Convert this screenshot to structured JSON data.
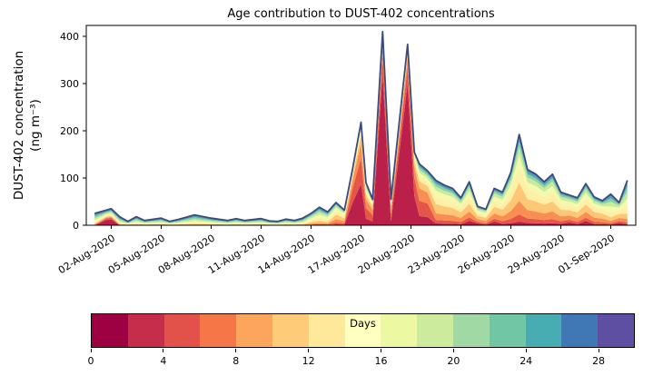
{
  "title": "Age contribution to DUST-402 concentrations",
  "ylabel": {
    "line1": "DUST-402 concentration",
    "line2": "(ng m⁻³)"
  },
  "colorbar": {
    "label": "Days",
    "ticks": [
      0,
      4,
      8,
      12,
      16,
      20,
      24,
      28
    ],
    "range": [
      0,
      30
    ],
    "segment_colors": [
      "#9e0142",
      "#c52d4b",
      "#e2524a",
      "#f57647",
      "#fca55d",
      "#fecb79",
      "#fee99a",
      "#ffffbf",
      "#edf8a3",
      "#cdeb9d",
      "#a1d9a4",
      "#70c6a5",
      "#48adb3",
      "#3f78b5",
      "#5e4fa2"
    ]
  },
  "chart_data": {
    "type": "stacked_area",
    "title": "Age contribution to DUST-402 concentrations",
    "ylabel": "DUST-402 concentration (ng m⁻³)",
    "xlabel": "",
    "ylim": [
      0,
      423
    ],
    "xlim": [
      -0.5,
      32.5
    ],
    "yticks": [
      0,
      100,
      200,
      300,
      400
    ],
    "xtick_pos": [
      1,
      4,
      7,
      10,
      13,
      16,
      19,
      22,
      25,
      28,
      31
    ],
    "xtick_labels": [
      "02-Aug-2020",
      "05-Aug-2020",
      "08-Aug-2020",
      "11-Aug-2020",
      "14-Aug-2020",
      "17-Aug-2020",
      "20-Aug-2020",
      "23-Aug-2020",
      "26-Aug-2020",
      "29-Aug-2020",
      "01-Sep-2020"
    ],
    "legend": "colorbar (Days, 0-30)",
    "grid": false,
    "line_color": "#3b4a7d",
    "age_bin_labels_days": [
      "0-3",
      "3-6",
      "6-9",
      "9-12",
      "12-15",
      "15-18",
      "18-21",
      "21-24",
      "24-27",
      "27-30"
    ],
    "bin_colors": [
      "#ba2049",
      "#e55649",
      "#f98e52",
      "#fec776",
      "#fff0a5",
      "#f3faac",
      "#c9e99e",
      "#89d0a5",
      "#4ca5b1",
      "#486caf"
    ],
    "x": [
      0,
      0.7,
      1,
      1.5,
      2,
      2.5,
      3,
      4,
      4.5,
      5,
      6,
      7,
      8,
      8.5,
      9,
      10,
      10.5,
      11,
      11.5,
      12,
      12.5,
      13,
      13.5,
      14,
      14.5,
      15,
      15.5,
      16,
      16.3,
      16.7,
      17.3,
      17.8,
      18.8,
      19.2,
      19.5,
      20,
      20.5,
      21,
      21.5,
      22,
      22.5,
      23,
      23.5,
      24,
      24.5,
      25,
      25.5,
      26,
      26.5,
      27,
      27.5,
      28,
      28.5,
      29,
      29.5,
      30,
      30.5,
      31,
      31.5,
      32
    ],
    "x_unit": "days since 01-Aug-2020",
    "total": [
      25,
      32,
      35,
      18,
      8,
      18,
      10,
      15,
      8,
      12,
      22,
      15,
      10,
      14,
      10,
      14,
      9,
      8,
      13,
      10,
      15,
      25,
      38,
      28,
      48,
      32,
      120,
      218,
      90,
      55,
      410,
      55,
      383,
      155,
      130,
      115,
      95,
      85,
      78,
      58,
      92,
      40,
      34,
      78,
      70,
      112,
      192,
      118,
      108,
      92,
      108,
      70,
      64,
      58,
      88,
      60,
      52,
      66,
      48,
      95
    ],
    "profile_names": [
      "aged",
      "early-burst",
      "early-burst",
      "aged",
      "aged",
      "aged",
      "aged",
      "aged",
      "aged",
      "aged",
      "aged",
      "aged",
      "aged",
      "aged",
      "aged",
      "aged",
      "aged",
      "aged",
      "aged",
      "aged",
      "aged",
      "old-mid",
      "old-mid",
      "old-mid",
      "mid",
      "mid",
      "fresh-mix",
      "fresh-mix",
      "mixed-young",
      "mixed-young",
      "fresh",
      "mixed-young",
      "fresh",
      "fresh-mix",
      "mixed-young",
      "mixed-young",
      "mid",
      "mid",
      "mid",
      "mid",
      "mid-red",
      "mid-red",
      "mid",
      "mid-red",
      "mid",
      "mid",
      "mid",
      "mid",
      "mid",
      "mid",
      "mid",
      "mid",
      "mid-red",
      "mid",
      "mid-red",
      "mid",
      "mid",
      "old-mid",
      "mid-red",
      "old-mid"
    ],
    "profiles": {
      "aged": [
        0.0,
        0.02,
        0.05,
        0.08,
        0.12,
        0.15,
        0.18,
        0.16,
        0.14,
        0.1
      ],
      "early-burst": [
        0.35,
        0.1,
        0.06,
        0.06,
        0.08,
        0.08,
        0.08,
        0.07,
        0.07,
        0.05
      ],
      "mixed-young": [
        0.15,
        0.25,
        0.2,
        0.12,
        0.08,
        0.06,
        0.05,
        0.04,
        0.03,
        0.02
      ],
      "fresh": [
        0.78,
        0.1,
        0.04,
        0.03,
        0.02,
        0.01,
        0.01,
        0.005,
        0.005,
        0.0
      ],
      "fresh-mix": [
        0.4,
        0.25,
        0.15,
        0.08,
        0.05,
        0.03,
        0.02,
        0.01,
        0.005,
        0.005
      ],
      "mid": [
        0.04,
        0.08,
        0.15,
        0.2,
        0.18,
        0.12,
        0.09,
        0.06,
        0.05,
        0.03
      ],
      "mid-red": [
        0.1,
        0.08,
        0.14,
        0.18,
        0.16,
        0.12,
        0.09,
        0.06,
        0.04,
        0.03
      ],
      "old-mid": [
        0.02,
        0.04,
        0.08,
        0.12,
        0.16,
        0.18,
        0.15,
        0.11,
        0.08,
        0.06
      ]
    }
  }
}
